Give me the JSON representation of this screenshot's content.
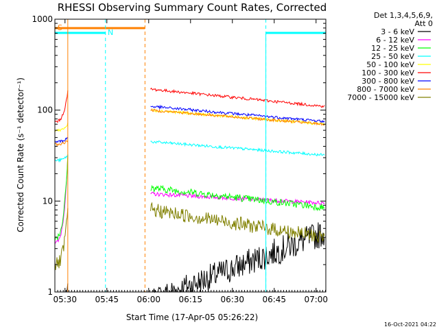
{
  "chart_data": {
    "type": "line",
    "title": "RHESSI Observing Summary Count Rates, Corrected",
    "ylabel": "Corrected Count Rate (s⁻¹ detector⁻¹)",
    "xlabel": "Start Time (17-Apr-05 05:26:22)",
    "x_range": [
      "05:26:22",
      "07:03:30"
    ],
    "y_scale": "log",
    "ylim": [
      1,
      1000
    ],
    "x_ticks": [
      "05:30",
      "05:45",
      "06:00",
      "06:15",
      "06:30",
      "06:45",
      "07:00"
    ],
    "y_ticks": [
      "1",
      "10",
      "100",
      "1000"
    ],
    "legend_header": [
      "Det 1,3,4,5,6,9,",
      "Att 0"
    ],
    "legend_placement": "right",
    "series": [
      {
        "name": "3 - 6 keV",
        "color": "#000000",
        "values": [
          [
            0.2,
            1.0
          ],
          [
            0.8,
            4.5
          ],
          [
            0.7,
            1.4
          ],
          [
            1.0,
            1.2
          ],
          [
            1.2,
            1.2
          ],
          [
            1.3,
            1.1
          ],
          [
            1.2,
            1.4
          ]
        ],
        "segments": [
          [
            "05:26:22",
            "05:31:00"
          ],
          [
            "06:00:40",
            "07:03:00"
          ]
        ]
      },
      {
        "name": "6 - 12 keV",
        "color": "#ff00ff",
        "values": [
          [
            3.5,
            30.0
          ],
          [
            12.0,
            9.5
          ],
          [
            9.3,
            9.5
          ],
          [
            9.3,
            9.5
          ],
          [
            9.3,
            9.5
          ],
          [
            9.3,
            9.5
          ],
          [
            9.3,
            9.5
          ]
        ],
        "segments": [
          [
            "05:26:22",
            "05:31:00"
          ],
          [
            "06:00:40",
            "07:03:00"
          ]
        ]
      },
      {
        "name": "12 - 25 keV",
        "color": "#00ff00",
        "values": [
          [
            4.0,
            30.0
          ],
          [
            14.0,
            8.5
          ],
          [
            7.2,
            7.2
          ],
          [
            7.2,
            8.5
          ],
          [
            8.8,
            9.0
          ],
          [
            8.0,
            7.5
          ],
          [
            6.6,
            5.5
          ]
        ],
        "segments": [
          [
            "05:26:22",
            "05:31:00"
          ],
          [
            "06:00:40",
            "07:03:00"
          ]
        ]
      },
      {
        "name": "25 - 50 keV",
        "color": "#00ffff",
        "values": [
          [
            28.0,
            32.0
          ],
          [
            45.0,
            32.0
          ],
          [
            28.0,
            27.0
          ],
          [
            27.0,
            30.0
          ],
          [
            36.0,
            37.0
          ],
          [
            35.0,
            33.0
          ],
          [
            31.0,
            30.0
          ]
        ],
        "segments": [
          [
            "05:26:22",
            "05:31:00"
          ],
          [
            "06:00:40",
            "07:03:00"
          ]
        ]
      },
      {
        "name": "50 - 100 keV",
        "color": "#ffff00",
        "values": [
          [
            60.0,
            70.0
          ],
          [
            100.0,
            70.0
          ],
          [
            64.0,
            63.0
          ],
          [
            63.0,
            66.0
          ],
          [
            73.0,
            75.0
          ],
          [
            72.0,
            70.0
          ],
          [
            65.0,
            60.0
          ]
        ],
        "segments": [
          [
            "05:26:22",
            "05:31:00"
          ],
          [
            "06:00:40",
            "07:03:00"
          ]
        ]
      },
      {
        "name": "100 - 300 keV",
        "color": "#ff0000",
        "values": [
          [
            75.0,
            160.0
          ],
          [
            170.0,
            110.0
          ],
          [
            95.0,
            90.0
          ],
          [
            90.0,
            100.0
          ],
          [
            118.0,
            120.0
          ],
          [
            112.0,
            105.0
          ],
          [
            95.0,
            85.0
          ]
        ],
        "segments": [
          [
            "05:26:22",
            "05:31:00"
          ],
          [
            "06:00:40",
            "07:03:00"
          ]
        ]
      },
      {
        "name": "300 - 800 keV",
        "color": "#0000ff",
        "values": [
          [
            45.0,
            50.0
          ],
          [
            110.0,
            75.0
          ],
          [
            68.0,
            65.0
          ],
          [
            65.0,
            68.0
          ],
          [
            75.0,
            77.0
          ],
          [
            74.0,
            70.0
          ],
          [
            64.0,
            60.0
          ]
        ],
        "segments": [
          [
            "05:26:22",
            "05:31:00"
          ],
          [
            "06:00:40",
            "07:03:00"
          ]
        ]
      },
      {
        "name": "800 - 7000 keV",
        "color": "#ff8000",
        "values": [
          [
            42.0,
            47.0
          ],
          [
            100.0,
            70.0
          ],
          [
            64.0,
            61.0
          ],
          [
            61.0,
            63.0
          ],
          [
            70.0,
            73.0
          ],
          [
            70.0,
            66.0
          ],
          [
            58.0,
            54.0
          ]
        ],
        "segments": [
          [
            "05:26:22",
            "05:31:00"
          ],
          [
            "06:00:40",
            "07:03:00"
          ]
        ]
      },
      {
        "name": "7000 - 15000 keV",
        "color": "#808000",
        "values": [
          [
            2.0,
            8.0
          ],
          [
            8.0,
            4.0
          ],
          [
            3.8,
            3.5
          ],
          [
            3.5,
            3.6
          ],
          [
            3.8,
            4.2
          ],
          [
            4.0,
            3.8
          ],
          [
            3.6,
            3.5
          ]
        ],
        "segments": [
          [
            "05:26:22",
            "05:31:00"
          ],
          [
            "06:00:40",
            "07:03:00"
          ]
        ]
      }
    ],
    "annotations": [
      {
        "label": "S",
        "type": "SAA",
        "start": "05:26:22",
        "end": "05:58:40",
        "color": "#ff8000"
      },
      {
        "label": "N",
        "type": "Night",
        "start": "05:26:22",
        "end": "05:44:30",
        "color": "#00ffff"
      },
      {
        "label": "",
        "type": "Night",
        "start": "06:42:00",
        "end": "07:03:30",
        "color": "#00ffff"
      }
    ],
    "timestamp": "16-Oct-2021 04:22"
  }
}
